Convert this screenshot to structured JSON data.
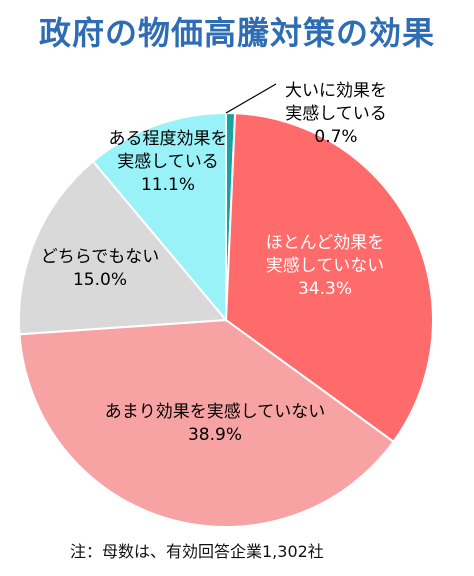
{
  "title": "政府の物価高騰対策の効果",
  "note": "注：母数は、有効回答企業1,302社",
  "chart_data": {
    "type": "pie",
    "slices": [
      {
        "label_lines": [
          "大いに効果を",
          "実感している"
        ],
        "value_text": "0.7%",
        "value": 0.7,
        "color": "#17a3a3"
      },
      {
        "label_lines": [
          "ほとんど効果を",
          "実感していない"
        ],
        "value_text": "34.3%",
        "value": 34.3,
        "color": "#ff6b6b"
      },
      {
        "label_lines": [
          "あまり効果を実感していない"
        ],
        "value_text": "38.9%",
        "value": 38.9,
        "color": "#f8a3a3"
      },
      {
        "label_lines": [
          "どちらでもない"
        ],
        "value_text": "15.0%",
        "value": 15.0,
        "color": "#d9d9d9"
      },
      {
        "label_lines": [
          "ある程度効果を",
          "実感している"
        ],
        "value_text": "11.1%",
        "value": 11.1,
        "color": "#99f2f8"
      }
    ]
  }
}
